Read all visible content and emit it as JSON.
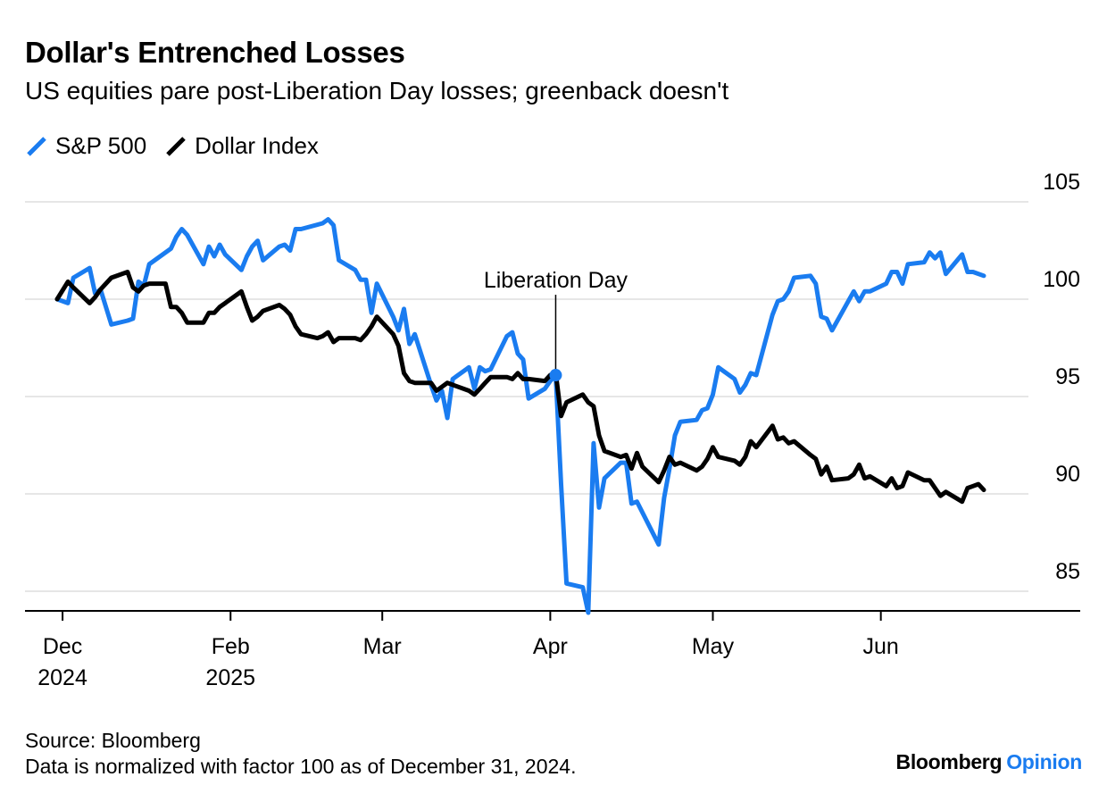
{
  "header": {
    "title": "Dollar's Entrenched Losses",
    "subtitle": "US equities pare post-Liberation Day losses; greenback doesn't"
  },
  "footer": {
    "source": "Source: Bloomberg",
    "note": "Data is normalized with factor 100 as of December 31, 2024."
  },
  "brand": {
    "name": "Bloomberg",
    "section": "Opinion"
  },
  "colors": {
    "sp500": "#1a7cf0",
    "dollar": "#000000",
    "grid": "#e6e6e6"
  },
  "chart_data": {
    "type": "line",
    "title": "Dollar's Entrenched Losses",
    "subtitle": "US equities pare post-Liberation Day losses; greenback doesn't",
    "x_axis": {
      "type": "date",
      "range": [
        "2024-12-31",
        "2025-06-20"
      ],
      "ticks": [
        {
          "date": "2025-01-01",
          "label": "Dec",
          "sublabel": "2024"
        },
        {
          "date": "2025-02-01",
          "label": "Feb",
          "sublabel": "2025"
        },
        {
          "date": "2025-03-01",
          "label": "Mar",
          "sublabel": ""
        },
        {
          "date": "2025-04-01",
          "label": "Apr",
          "sublabel": ""
        },
        {
          "date": "2025-05-01",
          "label": "May",
          "sublabel": ""
        },
        {
          "date": "2025-06-01",
          "label": "Jun",
          "sublabel": ""
        }
      ]
    },
    "y_axis": {
      "position": "right",
      "ylim": [
        84,
        105.5
      ],
      "ticks": [
        85,
        90,
        95,
        100,
        105
      ],
      "grid": true
    },
    "legend": {
      "placement": "top-left"
    },
    "annotations": [
      {
        "label": "Liberation Day",
        "date": "2025-04-02",
        "series": "S&P 500",
        "value": 96.1
      }
    ],
    "series": [
      {
        "name": "S&P 500",
        "color": "#1a7cf0",
        "points": [
          [
            "2024-12-31",
            100.0
          ],
          [
            "2025-01-02",
            99.8
          ],
          [
            "2025-01-03",
            101.1
          ],
          [
            "2025-01-06",
            101.6
          ],
          [
            "2025-01-07",
            100.3
          ],
          [
            "2025-01-08",
            100.5
          ],
          [
            "2025-01-10",
            98.7
          ],
          [
            "2025-01-13",
            98.9
          ],
          [
            "2025-01-14",
            99.0
          ],
          [
            "2025-01-15",
            100.9
          ],
          [
            "2025-01-16",
            100.7
          ],
          [
            "2025-01-17",
            101.8
          ],
          [
            "2025-01-21",
            102.6
          ],
          [
            "2025-01-22",
            103.2
          ],
          [
            "2025-01-23",
            103.6
          ],
          [
            "2025-01-24",
            103.3
          ],
          [
            "2025-01-27",
            101.8
          ],
          [
            "2025-01-28",
            102.7
          ],
          [
            "2025-01-29",
            102.2
          ],
          [
            "2025-01-30",
            102.8
          ],
          [
            "2025-01-31",
            102.3
          ],
          [
            "2025-02-03",
            101.5
          ],
          [
            "2025-02-04",
            102.2
          ],
          [
            "2025-02-05",
            102.7
          ],
          [
            "2025-02-06",
            103.0
          ],
          [
            "2025-02-07",
            102.0
          ],
          [
            "2025-02-10",
            102.7
          ],
          [
            "2025-02-11",
            102.8
          ],
          [
            "2025-02-12",
            102.5
          ],
          [
            "2025-02-13",
            103.6
          ],
          [
            "2025-02-14",
            103.6
          ],
          [
            "2025-02-18",
            103.9
          ],
          [
            "2025-02-19",
            104.1
          ],
          [
            "2025-02-20",
            103.8
          ],
          [
            "2025-02-21",
            102.0
          ],
          [
            "2025-02-24",
            101.5
          ],
          [
            "2025-02-25",
            101.0
          ],
          [
            "2025-02-26",
            101.0
          ],
          [
            "2025-02-27",
            99.3
          ],
          [
            "2025-02-28",
            100.8
          ],
          [
            "2025-03-03",
            99.1
          ],
          [
            "2025-03-04",
            98.4
          ],
          [
            "2025-03-05",
            99.5
          ],
          [
            "2025-03-06",
            97.7
          ],
          [
            "2025-03-07",
            98.2
          ],
          [
            "2025-03-10",
            95.6
          ],
          [
            "2025-03-11",
            94.8
          ],
          [
            "2025-03-12",
            95.3
          ],
          [
            "2025-03-13",
            93.9
          ],
          [
            "2025-03-14",
            95.9
          ],
          [
            "2025-03-17",
            96.5
          ],
          [
            "2025-03-18",
            95.4
          ],
          [
            "2025-03-19",
            96.5
          ],
          [
            "2025-03-20",
            96.3
          ],
          [
            "2025-03-21",
            96.4
          ],
          [
            "2025-03-24",
            98.1
          ],
          [
            "2025-03-25",
            98.3
          ],
          [
            "2025-03-26",
            97.2
          ],
          [
            "2025-03-27",
            96.9
          ],
          [
            "2025-03-28",
            94.9
          ],
          [
            "2025-03-31",
            95.4
          ],
          [
            "2025-04-01",
            95.8
          ],
          [
            "2025-04-02",
            96.1
          ],
          [
            "2025-04-03",
            90.5
          ],
          [
            "2025-04-04",
            85.4
          ],
          [
            "2025-04-07",
            85.2
          ],
          [
            "2025-04-08",
            83.9
          ],
          [
            "2025-04-09",
            92.6
          ],
          [
            "2025-04-10",
            89.3
          ],
          [
            "2025-04-11",
            90.8
          ],
          [
            "2025-04-14",
            91.6
          ],
          [
            "2025-04-15",
            91.6
          ],
          [
            "2025-04-16",
            89.5
          ],
          [
            "2025-04-17",
            89.6
          ],
          [
            "2025-04-21",
            87.4
          ],
          [
            "2025-04-22",
            89.8
          ],
          [
            "2025-04-23",
            91.3
          ],
          [
            "2025-04-24",
            93.0
          ],
          [
            "2025-04-25",
            93.7
          ],
          [
            "2025-04-28",
            93.8
          ],
          [
            "2025-04-29",
            94.3
          ],
          [
            "2025-04-30",
            94.4
          ],
          [
            "2025-05-01",
            95.1
          ],
          [
            "2025-05-02",
            96.5
          ],
          [
            "2025-05-05",
            95.9
          ],
          [
            "2025-05-06",
            95.2
          ],
          [
            "2025-05-07",
            95.6
          ],
          [
            "2025-05-08",
            96.2
          ],
          [
            "2025-05-09",
            96.1
          ],
          [
            "2025-05-12",
            99.2
          ],
          [
            "2025-05-13",
            99.9
          ],
          [
            "2025-05-14",
            100.0
          ],
          [
            "2025-05-15",
            100.4
          ],
          [
            "2025-05-16",
            101.1
          ],
          [
            "2025-05-19",
            101.2
          ],
          [
            "2025-05-20",
            100.8
          ],
          [
            "2025-05-21",
            99.1
          ],
          [
            "2025-05-22",
            99.0
          ],
          [
            "2025-05-23",
            98.4
          ],
          [
            "2025-05-27",
            100.4
          ],
          [
            "2025-05-28",
            99.9
          ],
          [
            "2025-05-29",
            100.4
          ],
          [
            "2025-05-30",
            100.4
          ],
          [
            "2025-06-02",
            100.8
          ],
          [
            "2025-06-03",
            101.4
          ],
          [
            "2025-06-04",
            101.4
          ],
          [
            "2025-06-05",
            100.8
          ],
          [
            "2025-06-06",
            101.8
          ],
          [
            "2025-06-09",
            101.9
          ],
          [
            "2025-06-10",
            102.4
          ],
          [
            "2025-06-11",
            102.1
          ],
          [
            "2025-06-12",
            102.4
          ],
          [
            "2025-06-13",
            101.3
          ],
          [
            "2025-06-16",
            102.3
          ],
          [
            "2025-06-17",
            101.4
          ],
          [
            "2025-06-18",
            101.4
          ],
          [
            "2025-06-20",
            101.2
          ]
        ]
      },
      {
        "name": "Dollar Index",
        "color": "#000000",
        "points": [
          [
            "2024-12-31",
            100.0
          ],
          [
            "2025-01-02",
            100.9
          ],
          [
            "2025-01-03",
            100.6
          ],
          [
            "2025-01-06",
            99.8
          ],
          [
            "2025-01-07",
            100.1
          ],
          [
            "2025-01-08",
            100.5
          ],
          [
            "2025-01-10",
            101.1
          ],
          [
            "2025-01-13",
            101.4
          ],
          [
            "2025-01-14",
            100.6
          ],
          [
            "2025-01-15",
            100.4
          ],
          [
            "2025-01-16",
            100.7
          ],
          [
            "2025-01-17",
            100.8
          ],
          [
            "2025-01-20",
            100.8
          ],
          [
            "2025-01-21",
            99.6
          ],
          [
            "2025-01-22",
            99.6
          ],
          [
            "2025-01-23",
            99.3
          ],
          [
            "2025-01-24",
            98.8
          ],
          [
            "2025-01-27",
            98.8
          ],
          [
            "2025-01-28",
            99.3
          ],
          [
            "2025-01-29",
            99.3
          ],
          [
            "2025-01-30",
            99.6
          ],
          [
            "2025-01-31",
            99.8
          ],
          [
            "2025-02-03",
            100.4
          ],
          [
            "2025-02-04",
            99.6
          ],
          [
            "2025-02-05",
            98.9
          ],
          [
            "2025-02-06",
            99.1
          ],
          [
            "2025-02-07",
            99.4
          ],
          [
            "2025-02-10",
            99.7
          ],
          [
            "2025-02-11",
            99.5
          ],
          [
            "2025-02-12",
            99.2
          ],
          [
            "2025-02-13",
            98.6
          ],
          [
            "2025-02-14",
            98.2
          ],
          [
            "2025-02-17",
            98.0
          ],
          [
            "2025-02-18",
            98.1
          ],
          [
            "2025-02-19",
            98.3
          ],
          [
            "2025-02-20",
            97.8
          ],
          [
            "2025-02-21",
            98.0
          ],
          [
            "2025-02-24",
            98.0
          ],
          [
            "2025-02-25",
            97.9
          ],
          [
            "2025-02-26",
            98.2
          ],
          [
            "2025-02-27",
            98.6
          ],
          [
            "2025-02-28",
            99.1
          ],
          [
            "2025-03-03",
            98.2
          ],
          [
            "2025-03-04",
            97.6
          ],
          [
            "2025-03-05",
            96.2
          ],
          [
            "2025-03-06",
            95.8
          ],
          [
            "2025-03-07",
            95.7
          ],
          [
            "2025-03-10",
            95.7
          ],
          [
            "2025-03-11",
            95.3
          ],
          [
            "2025-03-12",
            95.5
          ],
          [
            "2025-03-13",
            95.7
          ],
          [
            "2025-03-14",
            95.6
          ],
          [
            "2025-03-17",
            95.3
          ],
          [
            "2025-03-18",
            95.1
          ],
          [
            "2025-03-19",
            95.4
          ],
          [
            "2025-03-20",
            95.7
          ],
          [
            "2025-03-21",
            96.0
          ],
          [
            "2025-03-24",
            96.0
          ],
          [
            "2025-03-25",
            95.9
          ],
          [
            "2025-03-26",
            96.2
          ],
          [
            "2025-03-27",
            95.9
          ],
          [
            "2025-03-28",
            95.9
          ],
          [
            "2025-03-31",
            95.8
          ],
          [
            "2025-04-01",
            96.1
          ],
          [
            "2025-04-02",
            96.2
          ],
          [
            "2025-04-03",
            94.0
          ],
          [
            "2025-04-04",
            94.7
          ],
          [
            "2025-04-07",
            95.1
          ],
          [
            "2025-04-08",
            94.7
          ],
          [
            "2025-04-09",
            94.5
          ],
          [
            "2025-04-10",
            93.0
          ],
          [
            "2025-04-11",
            92.2
          ],
          [
            "2025-04-14",
            91.9
          ],
          [
            "2025-04-15",
            92.0
          ],
          [
            "2025-04-16",
            91.3
          ],
          [
            "2025-04-17",
            92.1
          ],
          [
            "2025-04-18",
            91.4
          ],
          [
            "2025-04-21",
            90.6
          ],
          [
            "2025-04-22",
            91.2
          ],
          [
            "2025-04-23",
            91.9
          ],
          [
            "2025-04-24",
            91.5
          ],
          [
            "2025-04-25",
            91.6
          ],
          [
            "2025-04-28",
            91.2
          ],
          [
            "2025-04-29",
            91.4
          ],
          [
            "2025-04-30",
            91.8
          ],
          [
            "2025-05-01",
            92.4
          ],
          [
            "2025-05-02",
            91.9
          ],
          [
            "2025-05-05",
            91.7
          ],
          [
            "2025-05-06",
            91.5
          ],
          [
            "2025-05-07",
            91.9
          ],
          [
            "2025-05-08",
            92.7
          ],
          [
            "2025-05-09",
            92.4
          ],
          [
            "2025-05-12",
            93.5
          ],
          [
            "2025-05-13",
            92.8
          ],
          [
            "2025-05-14",
            92.9
          ],
          [
            "2025-05-15",
            92.6
          ],
          [
            "2025-05-16",
            92.7
          ],
          [
            "2025-05-19",
            92.0
          ],
          [
            "2025-05-20",
            91.8
          ],
          [
            "2025-05-21",
            91.0
          ],
          [
            "2025-05-22",
            91.4
          ],
          [
            "2025-05-23",
            90.7
          ],
          [
            "2025-05-26",
            90.8
          ],
          [
            "2025-05-27",
            91.0
          ],
          [
            "2025-05-28",
            91.5
          ],
          [
            "2025-05-29",
            90.8
          ],
          [
            "2025-05-30",
            90.9
          ],
          [
            "2025-06-02",
            90.4
          ],
          [
            "2025-06-03",
            90.8
          ],
          [
            "2025-06-04",
            90.3
          ],
          [
            "2025-06-05",
            90.4
          ],
          [
            "2025-06-06",
            91.1
          ],
          [
            "2025-06-09",
            90.7
          ],
          [
            "2025-06-10",
            90.7
          ],
          [
            "2025-06-11",
            90.3
          ],
          [
            "2025-06-12",
            89.9
          ],
          [
            "2025-06-13",
            90.1
          ],
          [
            "2025-06-16",
            89.6
          ],
          [
            "2025-06-17",
            90.3
          ],
          [
            "2025-06-18",
            90.4
          ],
          [
            "2025-06-19",
            90.5
          ],
          [
            "2025-06-20",
            90.2
          ]
        ]
      }
    ]
  }
}
